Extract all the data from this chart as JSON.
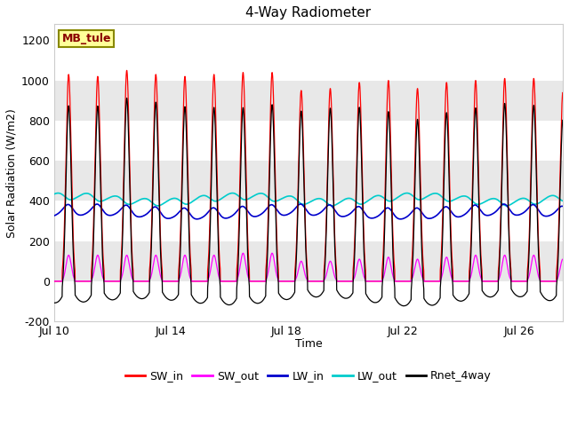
{
  "title": "4-Way Radiometer",
  "xlabel": "Time",
  "ylabel": "Solar Radiation (W/m2)",
  "ylim": [
    -200,
    1280
  ],
  "yticks": [
    -200,
    0,
    200,
    400,
    600,
    800,
    1000,
    1200
  ],
  "xtick_labels": [
    "Jul 10",
    "Jul 14",
    "Jul 18",
    "Jul 22",
    "Jul 26"
  ],
  "xtick_pos": [
    0,
    4,
    8,
    12,
    16
  ],
  "xlim": [
    0,
    17.5
  ],
  "background_color": "#ffffff",
  "band_colors": [
    "#ffffff",
    "#e8e8e8"
  ],
  "station_label": "MB_tule",
  "legend_entries": [
    "SW_in",
    "SW_out",
    "LW_in",
    "LW_out",
    "Rnet_4way"
  ],
  "colors": {
    "SW_in": "#ff0000",
    "SW_out": "#ff00ff",
    "LW_in": "#0000cc",
    "LW_out": "#00cccc",
    "Rnet_4way": "#000000"
  },
  "n_days": 18,
  "start_day": 10,
  "sw_in_peaks": [
    1030,
    1020,
    1050,
    1030,
    1020,
    1030,
    1040,
    1040,
    950,
    960,
    990,
    1000,
    960,
    990,
    1000,
    1010,
    1010,
    940
  ],
  "sw_out_peaks": [
    130,
    130,
    130,
    130,
    130,
    130,
    140,
    140,
    100,
    100,
    110,
    120,
    110,
    120,
    130,
    130,
    130,
    110
  ]
}
